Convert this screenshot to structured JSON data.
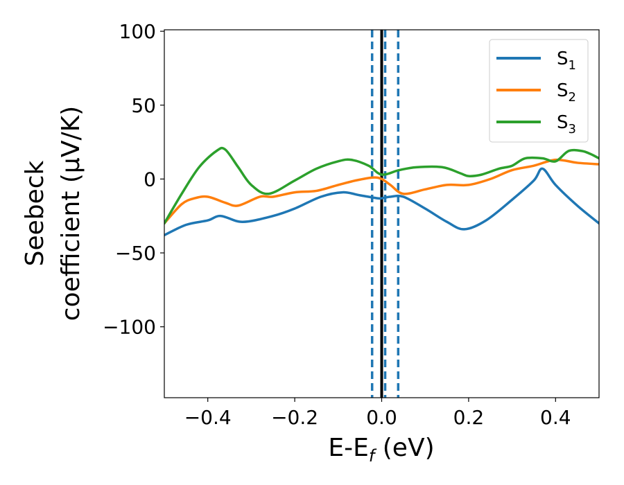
{
  "chart_data": {
    "type": "line",
    "xlabel": {
      "main": "E-E",
      "sub": "f",
      "unit": " (eV)"
    },
    "ylabel": {
      "line1": "Seebeck",
      "line2": "coefficient  (μV/K)"
    },
    "xlim": [
      -0.5,
      0.5
    ],
    "ylim": [
      -148,
      101
    ],
    "xticks": [
      -0.4,
      -0.2,
      0.0,
      0.2,
      0.4
    ],
    "xtick_labels": [
      "−0.4",
      "−0.2",
      "0.0",
      "0.2",
      "0.4"
    ],
    "yticks": [
      -100,
      -50,
      0,
      50,
      100
    ],
    "ytick_labels": [
      "−100",
      "−50",
      "0",
      "50",
      "100"
    ],
    "grid": false,
    "legend_position": "top-right",
    "vlines": [
      {
        "x": 0.0,
        "style": "solid",
        "color": "#000000"
      },
      {
        "x": -0.022,
        "style": "dashed",
        "color": "#1f77b4"
      },
      {
        "x": 0.008,
        "style": "dashed",
        "color": "#1f77b4"
      },
      {
        "x": 0.038,
        "style": "dashed",
        "color": "#1f77b4"
      }
    ],
    "series": [
      {
        "name": "S",
        "sub": "1",
        "color": "#1f77b4",
        "points": [
          [
            -0.5,
            -38
          ],
          [
            -0.45,
            -31
          ],
          [
            -0.4,
            -28
          ],
          [
            -0.37,
            -25
          ],
          [
            -0.32,
            -29
          ],
          [
            -0.25,
            -25
          ],
          [
            -0.2,
            -20
          ],
          [
            -0.14,
            -12
          ],
          [
            -0.09,
            -9
          ],
          [
            -0.05,
            -11
          ],
          [
            -0.01,
            -13
          ],
          [
            0.0,
            -13
          ],
          [
            0.02,
            -12
          ],
          [
            0.05,
            -12
          ],
          [
            0.1,
            -20
          ],
          [
            0.15,
            -29
          ],
          [
            0.19,
            -34
          ],
          [
            0.24,
            -28
          ],
          [
            0.3,
            -14
          ],
          [
            0.35,
            -1
          ],
          [
            0.37,
            7
          ],
          [
            0.4,
            -4
          ],
          [
            0.45,
            -18
          ],
          [
            0.5,
            -30
          ]
        ]
      },
      {
        "name": "S",
        "sub": "2",
        "color": "#ff7f0e",
        "points": [
          [
            -0.5,
            -30
          ],
          [
            -0.46,
            -17
          ],
          [
            -0.43,
            -13
          ],
          [
            -0.4,
            -12
          ],
          [
            -0.36,
            -16
          ],
          [
            -0.33,
            -18
          ],
          [
            -0.28,
            -12
          ],
          [
            -0.25,
            -12
          ],
          [
            -0.2,
            -9
          ],
          [
            -0.15,
            -8
          ],
          [
            -0.1,
            -4
          ],
          [
            -0.06,
            -1
          ],
          [
            -0.02,
            1
          ],
          [
            0.0,
            0
          ],
          [
            0.02,
            -4
          ],
          [
            0.05,
            -10
          ],
          [
            0.1,
            -7
          ],
          [
            0.15,
            -4
          ],
          [
            0.2,
            -4
          ],
          [
            0.25,
            0
          ],
          [
            0.3,
            6
          ],
          [
            0.35,
            9
          ],
          [
            0.4,
            13
          ],
          [
            0.45,
            11
          ],
          [
            0.5,
            10
          ]
        ]
      },
      {
        "name": "S",
        "sub": "3",
        "color": "#2ca02c",
        "points": [
          [
            -0.5,
            -30
          ],
          [
            -0.46,
            -10
          ],
          [
            -0.42,
            8
          ],
          [
            -0.38,
            19
          ],
          [
            -0.36,
            20
          ],
          [
            -0.33,
            8
          ],
          [
            -0.3,
            -4
          ],
          [
            -0.26,
            -10
          ],
          [
            -0.2,
            -1
          ],
          [
            -0.15,
            7
          ],
          [
            -0.1,
            12
          ],
          [
            -0.07,
            13
          ],
          [
            -0.03,
            9
          ],
          [
            0.0,
            3
          ],
          [
            0.04,
            6
          ],
          [
            0.08,
            8
          ],
          [
            0.14,
            8
          ],
          [
            0.18,
            4
          ],
          [
            0.2,
            2
          ],
          [
            0.23,
            3
          ],
          [
            0.27,
            7
          ],
          [
            0.3,
            9
          ],
          [
            0.33,
            14
          ],
          [
            0.37,
            14
          ],
          [
            0.4,
            12
          ],
          [
            0.43,
            19
          ],
          [
            0.46,
            19
          ],
          [
            0.48,
            17
          ],
          [
            0.5,
            14
          ]
        ]
      }
    ]
  }
}
